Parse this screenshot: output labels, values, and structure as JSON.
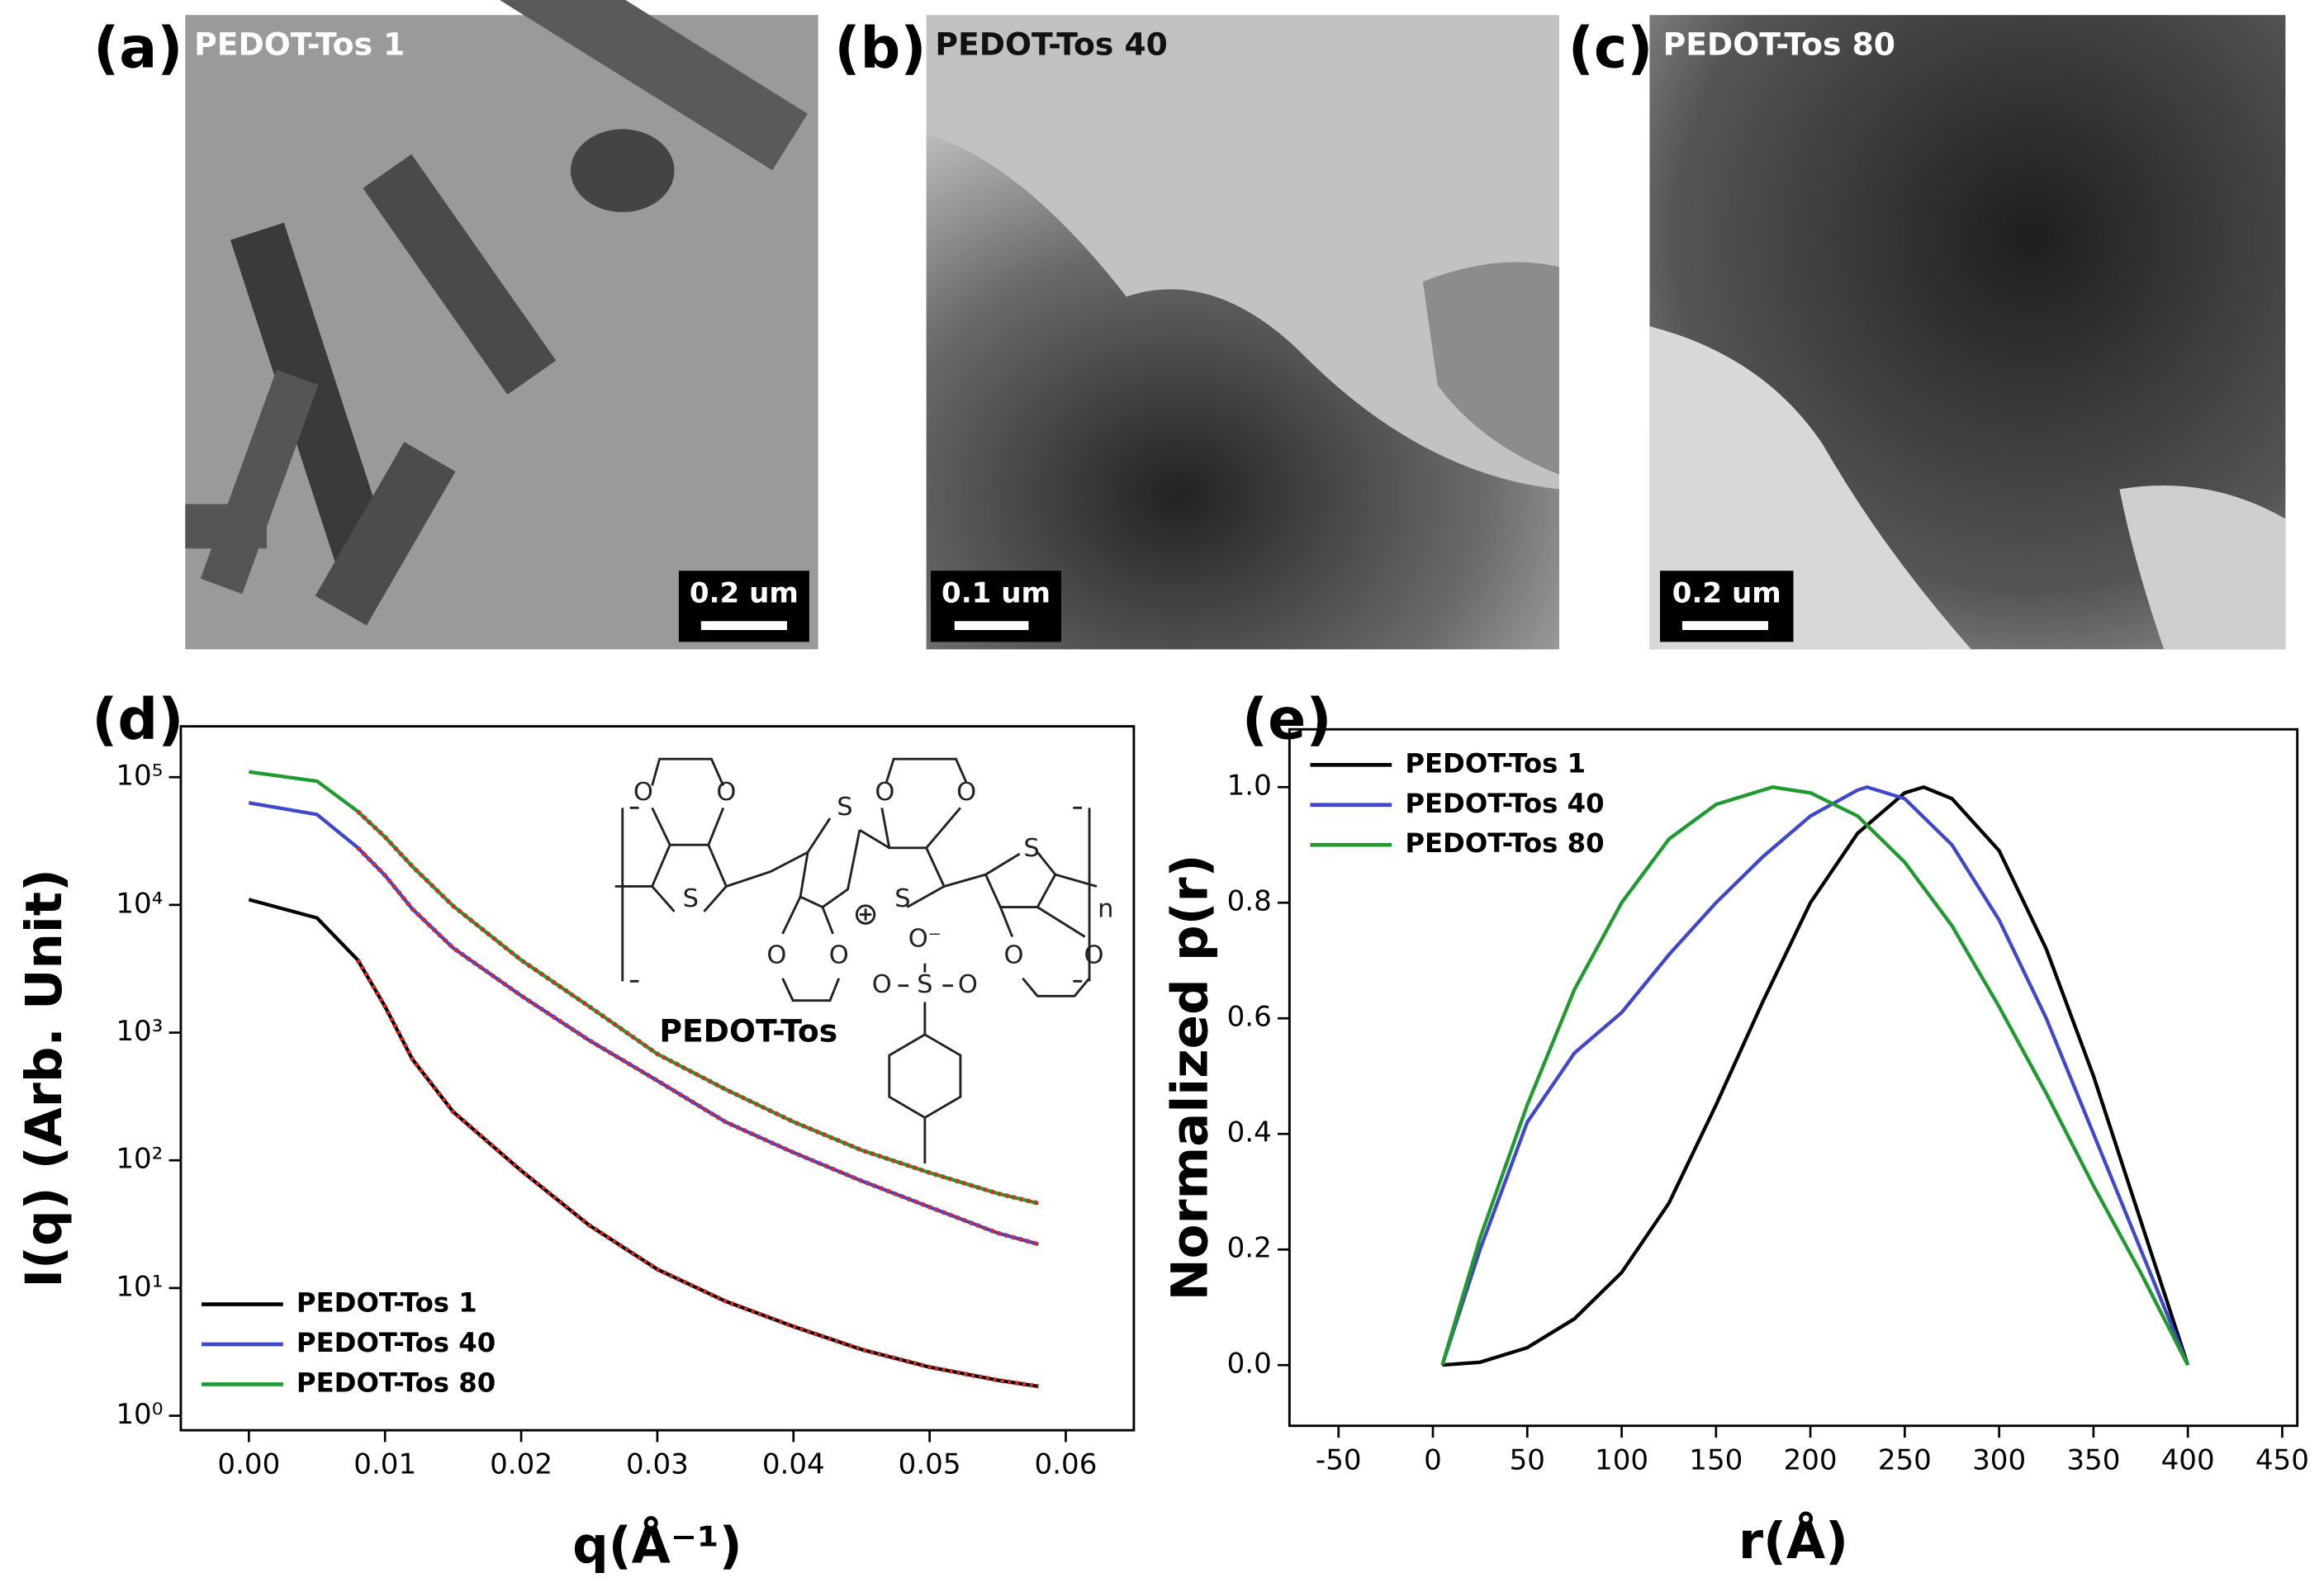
{
  "images": [
    {
      "panel_label": "(a)",
      "caption": "PEDOT-Tos 1",
      "scale_bar": "0.2 um"
    },
    {
      "panel_label": "(b)",
      "caption": "PEDOT-Tos 40",
      "scale_bar": "0.1 um"
    },
    {
      "panel_label": "(c)",
      "caption": "PEDOT-Tos 80",
      "scale_bar": "0.2 um"
    }
  ],
  "chart_data": [
    {
      "type": "line",
      "panel_label": "(d)",
      "x_label": "q(Å⁻¹)",
      "y_label": "I(q) (Arb. Unit)",
      "yscale": "log",
      "legend": "lower left",
      "x": [
        0,
        0.005,
        0.008,
        0.01,
        0.012,
        0.015,
        0.02,
        0.025,
        0.03,
        0.035,
        0.04,
        0.045,
        0.05,
        0.055,
        0.058
      ],
      "series": [
        {
          "name": "PEDOT-Tos 1",
          "color": "#000000",
          "values": [
            11000,
            7900,
            3700,
            1600,
            620,
            240,
            83,
            31,
            14,
            7.9,
            5.0,
            3.3,
            2.4,
            1.9,
            1.7
          ]
        },
        {
          "name": "PEDOT-Tos 40",
          "color": "#3f48cc",
          "values": [
            63000,
            51000,
            28000,
            17000,
            9300,
            4600,
            1950,
            870,
            420,
            200,
            115,
            69,
            43,
            27,
            22
          ]
        },
        {
          "name": "PEDOT-Tos 80",
          "color": "#1f9a2e",
          "values": [
            110000,
            93000,
            54000,
            34000,
            20000,
            9800,
            3700,
            1600,
            680,
            360,
            200,
            120,
            80,
            55,
            46
          ]
        },
        {
          "color": "#e8251f",
          "style": "dotted",
          "values": [
            null,
            null,
            3700,
            1600,
            620,
            240,
            83,
            31,
            14,
            7.9,
            5.0,
            3.3,
            2.4,
            1.9,
            1.7
          ]
        },
        {
          "color": "#e8251f",
          "style": "dotted",
          "values": [
            null,
            null,
            28000,
            17000,
            9300,
            4600,
            1950,
            870,
            420,
            200,
            115,
            69,
            43,
            27,
            22
          ]
        },
        {
          "color": "#e8251f",
          "style": "dotted",
          "values": [
            null,
            null,
            54000,
            34000,
            20000,
            9800,
            3700,
            1600,
            680,
            360,
            200,
            120,
            80,
            55,
            46
          ]
        }
      ],
      "xlim": [
        -0.005,
        0.065
      ],
      "xticks": [
        {
          "value": 0,
          "label": "0.00"
        },
        {
          "value": 0.01,
          "label": "0.01"
        },
        {
          "value": 0.02,
          "label": "0.02"
        },
        {
          "value": 0.03,
          "label": "0.03"
        },
        {
          "value": 0.04,
          "label": "0.04"
        },
        {
          "value": 0.05,
          "label": "0.05"
        },
        {
          "value": 0.06,
          "label": "0.06"
        }
      ],
      "ylim": [
        0.77,
        250000
      ],
      "yticks": [
        {
          "value": 1,
          "label": "10⁰"
        },
        {
          "value": 10,
          "label": "10¹"
        },
        {
          "value": 100,
          "label": "10²"
        },
        {
          "value": 1000,
          "label": "10³"
        },
        {
          "value": 10000,
          "label": "10⁴"
        },
        {
          "value": 100000,
          "label": "10⁵"
        }
      ],
      "inset": {
        "label": "PEDOT-Tos",
        "atoms": [
          "O",
          "O",
          "S",
          "S",
          "O",
          "O",
          "O",
          "O",
          "S",
          "O⁻",
          "S",
          "O",
          "O",
          "O",
          "O",
          "S",
          "n"
        ]
      }
    },
    {
      "type": "line",
      "panel_label": "(e)",
      "x_label": "r(Å)",
      "y_label": "Normalized p(r)",
      "legend": "upper left",
      "series": [
        {
          "name": "PEDOT-Tos 1",
          "color": "#000000",
          "x": [
            5,
            25,
            50,
            75,
            100,
            125,
            150,
            175,
            200,
            225,
            250,
            260,
            275,
            300,
            325,
            350,
            375,
            400
          ],
          "values": [
            0,
            0.005,
            0.03,
            0.08,
            0.16,
            0.28,
            0.45,
            0.63,
            0.8,
            0.92,
            0.99,
            1.0,
            0.98,
            0.89,
            0.72,
            0.5,
            0.25,
            0
          ]
        },
        {
          "name": "PEDOT-Tos 40",
          "color": "#3f48cc",
          "x": [
            5,
            25,
            50,
            75,
            100,
            125,
            150,
            175,
            200,
            225,
            230,
            250,
            275,
            300,
            325,
            350,
            375,
            400
          ],
          "values": [
            0,
            0.2,
            0.42,
            0.54,
            0.61,
            0.71,
            0.8,
            0.88,
            0.95,
            0.995,
            1.0,
            0.98,
            0.9,
            0.77,
            0.6,
            0.4,
            0.2,
            0
          ]
        },
        {
          "name": "PEDOT-Tos 80",
          "color": "#1f9a2e",
          "x": [
            5,
            25,
            50,
            75,
            100,
            125,
            150,
            180,
            200,
            225,
            250,
            275,
            300,
            325,
            350,
            375,
            400
          ],
          "values": [
            0,
            0.22,
            0.45,
            0.65,
            0.8,
            0.91,
            0.97,
            1.0,
            0.99,
            0.95,
            0.87,
            0.76,
            0.62,
            0.47,
            0.31,
            0.16,
            0
          ]
        }
      ],
      "xlim": [
        -76,
        458
      ],
      "xticks": [
        -50,
        0,
        50,
        100,
        150,
        200,
        250,
        300,
        350,
        400,
        450
      ],
      "ylim": [
        -0.105,
        1.1
      ],
      "yticks": [
        {
          "value": 0,
          "label": "0.0"
        },
        {
          "value": 0.2,
          "label": "0.2"
        },
        {
          "value": 0.4,
          "label": "0.4"
        },
        {
          "value": 0.6,
          "label": "0.6"
        },
        {
          "value": 0.8,
          "label": "0.8"
        },
        {
          "value": 1.0,
          "label": "1.0"
        }
      ]
    }
  ]
}
